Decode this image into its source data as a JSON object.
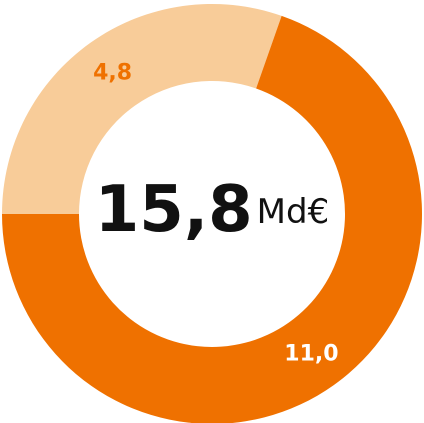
{
  "chart_data": {
    "type": "donut",
    "values": [
      4.8,
      11.0
    ],
    "value_labels": [
      "4,8",
      "11,0"
    ],
    "colors": [
      "#f8cc99",
      "#ef7100"
    ],
    "label_colors": [
      "#ef7100",
      "#ffffff"
    ],
    "center_label": "15,8",
    "unit": "Md€"
  }
}
